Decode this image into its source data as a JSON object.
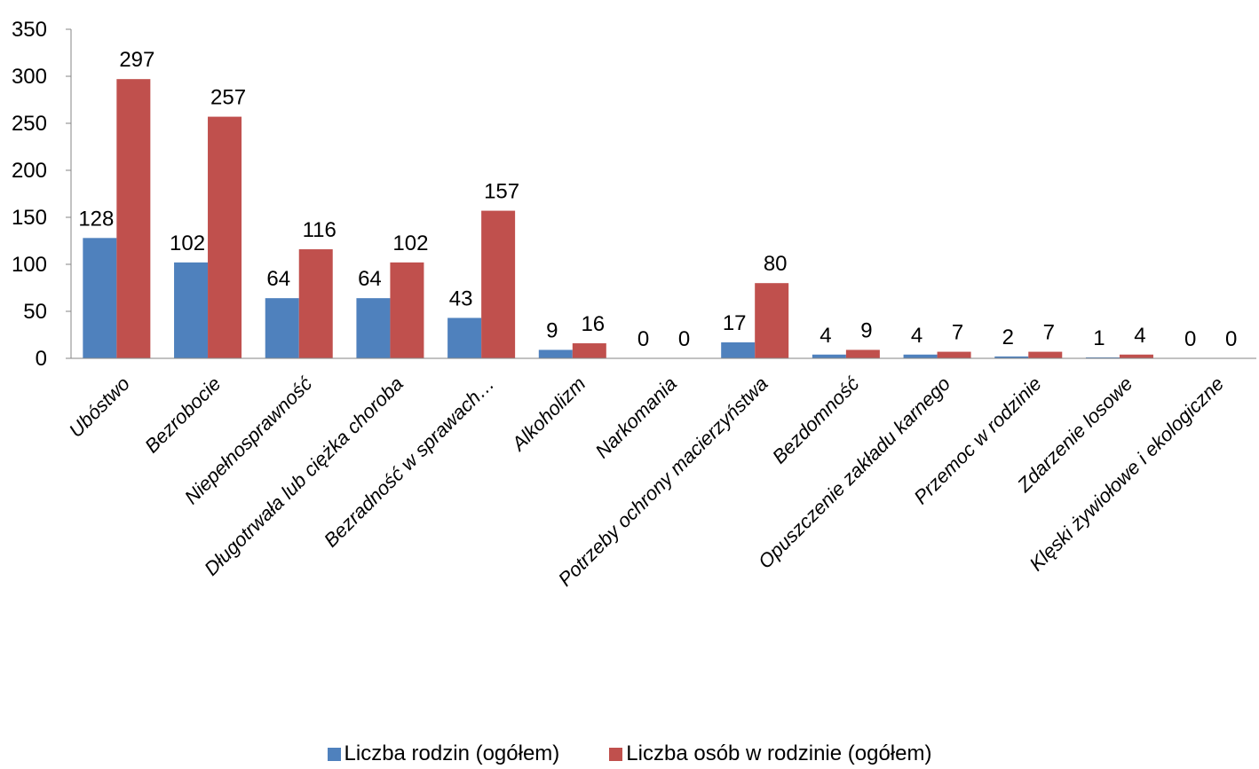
{
  "chart_data": {
    "type": "bar",
    "categories": [
      "Ubóstwo",
      "Bezrobocie",
      "Niepełnosprawność",
      "Długotrwała lub ciężka choroba",
      "Bezradność w sprawach…",
      "Alkoholizm",
      "Narkomania",
      "Potrzeby ochrony macierzyństwa",
      "Bezdomność",
      "Opuszczenie zakładu karnego",
      "Przemoc w rodzinie",
      "Zdarzenie losowe",
      "Klęski żywiołowe i ekologiczne"
    ],
    "series": [
      {
        "name": "Liczba rodzin (ogółem)",
        "color": "#4F81BD",
        "values": [
          128,
          102,
          64,
          64,
          43,
          9,
          0,
          17,
          4,
          4,
          2,
          1,
          0
        ]
      },
      {
        "name": "Liczba osób w rodzinie (ogółem)",
        "color": "#C0504D",
        "values": [
          297,
          257,
          116,
          102,
          157,
          16,
          0,
          80,
          9,
          7,
          7,
          4,
          0
        ]
      }
    ],
    "yticks": [
      "0",
      "50",
      "100",
      "150",
      "200",
      "250",
      "300",
      "350"
    ],
    "ylim": [
      0,
      350
    ],
    "grid": false,
    "legend": "bottom",
    "data_labels": true
  }
}
